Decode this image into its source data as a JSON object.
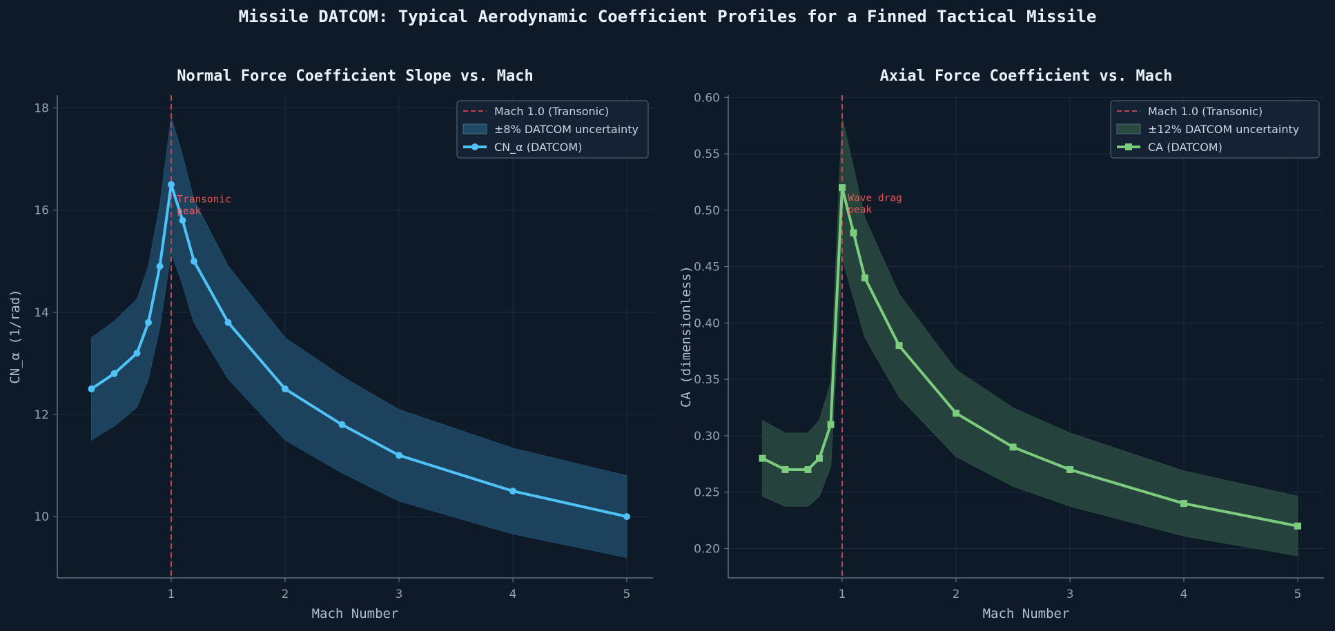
{
  "figure_title": "Missile DATCOM: Typical Aerodynamic Coefficient Profiles for a Finned Tactical Missile",
  "colors": {
    "background": "#0e1a28",
    "grid": "#1d2d3d",
    "spine": "#5d7185",
    "transonic_line": "#c0444e",
    "annotation": "#ff5a5a",
    "cn_line": "#4fc3f7",
    "cn_band": "#1f4a66",
    "ca_line": "#7ccc7e",
    "ca_band": "#2a4a3f"
  },
  "chart_data": [
    {
      "type": "line",
      "title": "Normal Force Coefficient Slope vs. Mach",
      "xlabel": "Mach Number",
      "ylabel": "CN_α  (1/rad)",
      "xlim": [
        0.0,
        5.23
      ],
      "ylim": [
        8.8,
        18.25
      ],
      "xticks": [
        1,
        2,
        3,
        4,
        5
      ],
      "yticks": [
        10,
        12,
        14,
        16,
        18
      ],
      "ytick_format": 0,
      "grid": true,
      "legend_placement": "top-right",
      "marker": "circle",
      "transonic_x": 1.0,
      "x": [
        0.3,
        0.5,
        0.7,
        0.8,
        0.9,
        1.0,
        1.1,
        1.2,
        1.5,
        2.0,
        2.5,
        3.0,
        4.0,
        5.0
      ],
      "y": [
        12.5,
        12.8,
        13.2,
        13.8,
        14.9,
        16.5,
        15.8,
        15.0,
        13.8,
        12.5,
        11.8,
        11.2,
        10.5,
        10.0
      ],
      "band_fraction": 0.08,
      "legend": {
        "transonic": "Mach 1.0 (Transonic)",
        "band": "±8% DATCOM uncertainty",
        "series": "CN_α (DATCOM)"
      },
      "annotation": {
        "lines": [
          "Transonic",
          "peak"
        ],
        "x": 1.05,
        "y": 16.15
      }
    },
    {
      "type": "line",
      "title": "Axial Force Coefficient vs. Mach",
      "xlabel": "Mach Number",
      "ylabel": "CA  (dimensionless)",
      "xlim": [
        0.0,
        5.23
      ],
      "ylim": [
        0.174,
        0.602
      ],
      "xticks": [
        1,
        2,
        3,
        4,
        5
      ],
      "yticks": [
        0.2,
        0.25,
        0.3,
        0.35,
        0.4,
        0.45,
        0.5,
        0.55,
        0.6
      ],
      "ytick_format": 2,
      "grid": true,
      "legend_placement": "top-right",
      "marker": "square",
      "transonic_x": 1.0,
      "x": [
        0.3,
        0.5,
        0.7,
        0.8,
        0.9,
        1.0,
        1.1,
        1.2,
        1.5,
        2.0,
        2.5,
        3.0,
        4.0,
        5.0
      ],
      "y": [
        0.28,
        0.27,
        0.27,
        0.28,
        0.31,
        0.52,
        0.48,
        0.44,
        0.38,
        0.32,
        0.29,
        0.27,
        0.24,
        0.22
      ],
      "band_fraction": 0.12,
      "legend": {
        "transonic": "Mach 1.0 (Transonic)",
        "band": "±12% DATCOM uncertainty",
        "series": "CA (DATCOM)"
      },
      "annotation": {
        "lines": [
          "Wave drag",
          "peak"
        ],
        "x": 1.05,
        "y": 0.508
      }
    }
  ]
}
